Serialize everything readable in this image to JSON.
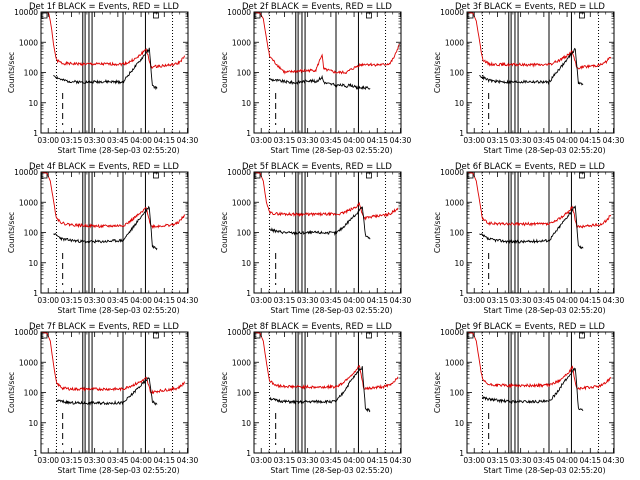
{
  "figure": {
    "ylabel": "Counts/sec",
    "xlabel": "Start Time (28-Sep-03 02:55:20)",
    "x_tick_labels": [
      "03:00",
      "03:15",
      "03:30",
      "03:45",
      "04:00",
      "04:15",
      "04:30"
    ],
    "y_tick_labels": [
      "1",
      "10",
      "100",
      "1000",
      "10000"
    ]
  },
  "colors": {
    "events": "#000000",
    "lld": "#dd0000",
    "axes": "#000000"
  },
  "chart_data": [
    {
      "type": "line",
      "title": "Det 1f BLACK = Events, RED = LLD",
      "xlabel": "Start Time (28-Sep-03 02:55:20)",
      "ylabel": "Counts/sec",
      "xlim_minutes": [
        0,
        95
      ],
      "ylim": [
        1,
        10000
      ],
      "yscale": "log",
      "vlines_dotted": [
        10,
        85
      ],
      "vlines_dashed": [
        14
      ],
      "vlines_solid": [
        27,
        28.5,
        31,
        33,
        53,
        67.5
      ],
      "series": [
        {
          "name": "LLD",
          "color": "#dd0000",
          "x": [
            0,
            4,
            5,
            6,
            7,
            8,
            10,
            14,
            20,
            27,
            40,
            53,
            57,
            60,
            62,
            68,
            71,
            75,
            80,
            85,
            88,
            90,
            93
          ],
          "values": [
            10000,
            10000,
            9000,
            5000,
            2500,
            900,
            250,
            200,
            195,
            190,
            190,
            190,
            220,
            270,
            300,
            600,
            150,
            160,
            170,
            180,
            195,
            230,
            350
          ]
        },
        {
          "name": "Events",
          "color": "#000000",
          "x": [
            8,
            10,
            14,
            20,
            27,
            40,
            53,
            57,
            60,
            62,
            66,
            68,
            70,
            72,
            75
          ],
          "values": [
            80,
            70,
            55,
            50,
            48,
            50,
            48,
            90,
            140,
            180,
            330,
            450,
            600,
            35,
            30
          ]
        }
      ]
    },
    {
      "type": "line",
      "title": "Det 2f BLACK = Events, RED = LLD",
      "xlabel": "Start Time (28-Sep-03 02:55:20)",
      "ylabel": "Counts/sec",
      "xlim_minutes": [
        0,
        95
      ],
      "ylim": [
        1,
        10000
      ],
      "yscale": "log",
      "vlines_dotted": [
        10,
        85
      ],
      "vlines_dashed": [
        14
      ],
      "vlines_solid": [
        27,
        28.5,
        31,
        33,
        53,
        67.5
      ],
      "series": [
        {
          "name": "LLD",
          "color": "#dd0000",
          "x": [
            0,
            4,
            6,
            8,
            10,
            14,
            20,
            27,
            35,
            40,
            44,
            45,
            46,
            53,
            57,
            60,
            62,
            68,
            72,
            78,
            84,
            88,
            91,
            94
          ],
          "values": [
            10000,
            9000,
            6000,
            1400,
            350,
            200,
            100,
            110,
            115,
            120,
            400,
            130,
            125,
            100,
            100,
            100,
            120,
            175,
            190,
            180,
            180,
            200,
            350,
            900
          ]
        },
        {
          "name": "Events",
          "color": "#000000",
          "x": [
            10,
            14,
            20,
            27,
            35,
            40,
            44,
            45,
            46,
            53,
            57,
            60,
            62,
            67,
            70,
            75
          ],
          "values": [
            60,
            55,
            50,
            45,
            55,
            50,
            70,
            50,
            45,
            38,
            38,
            35,
            40,
            30,
            32,
            30
          ]
        }
      ]
    },
    {
      "type": "line",
      "title": "Det 3f BLACK = Events, RED = LLD",
      "xlabel": "Start Time (28-Sep-03 02:55:20)",
      "ylabel": "Counts/sec",
      "xlim_minutes": [
        0,
        95
      ],
      "ylim": [
        1,
        10000
      ],
      "yscale": "log",
      "vlines_dotted": [
        10,
        85
      ],
      "vlines_dashed": [
        14
      ],
      "vlines_solid": [
        27,
        28.5,
        31,
        33,
        53,
        67.5
      ],
      "series": [
        {
          "name": "LLD",
          "color": "#dd0000",
          "x": [
            0,
            4,
            6,
            8,
            10,
            14,
            20,
            27,
            40,
            53,
            57,
            60,
            62,
            66,
            68,
            71,
            75,
            80,
            85,
            88,
            90,
            93
          ],
          "values": [
            10000,
            9000,
            5000,
            1200,
            280,
            190,
            185,
            180,
            180,
            180,
            220,
            260,
            300,
            400,
            500,
            140,
            150,
            165,
            175,
            195,
            230,
            320
          ]
        },
        {
          "name": "Events",
          "color": "#000000",
          "x": [
            8,
            10,
            14,
            20,
            27,
            40,
            53,
            57,
            60,
            62,
            66,
            68,
            70,
            72,
            75
          ],
          "values": [
            80,
            70,
            55,
            50,
            48,
            50,
            48,
            90,
            140,
            180,
            330,
            450,
            600,
            45,
            40
          ]
        }
      ]
    },
    {
      "type": "line",
      "title": "Det 4f BLACK = Events, RED = LLD",
      "xlabel": "Start Time (28-Sep-03 02:55:20)",
      "ylabel": "Counts/sec",
      "xlim_minutes": [
        0,
        95
      ],
      "ylim": [
        1,
        10000
      ],
      "yscale": "log",
      "vlines_dotted": [
        10,
        85
      ],
      "vlines_dashed": [
        14
      ],
      "vlines_solid": [
        27,
        28.5,
        31,
        33,
        53,
        67.5
      ],
      "series": [
        {
          "name": "LLD",
          "color": "#dd0000",
          "x": [
            0,
            4,
            6,
            8,
            10,
            14,
            20,
            27,
            40,
            53,
            57,
            60,
            62,
            66,
            68,
            71,
            75,
            80,
            85,
            88,
            90,
            93
          ],
          "values": [
            10000,
            9000,
            5000,
            1200,
            300,
            200,
            180,
            170,
            160,
            170,
            220,
            300,
            350,
            500,
            700,
            160,
            160,
            170,
            180,
            200,
            250,
            380
          ]
        },
        {
          "name": "Events",
          "color": "#000000",
          "x": [
            8,
            10,
            14,
            20,
            27,
            40,
            53,
            57,
            60,
            62,
            66,
            68,
            70,
            72,
            75
          ],
          "values": [
            90,
            80,
            60,
            55,
            50,
            50,
            55,
            100,
            160,
            220,
            400,
            550,
            700,
            35,
            30
          ]
        }
      ]
    },
    {
      "type": "line",
      "title": "Det 5f BLACK = Events, RED = LLD",
      "xlabel": "Start Time (28-Sep-03 02:55:20)",
      "ylabel": "Counts/sec",
      "xlim_minutes": [
        0,
        95
      ],
      "ylim": [
        1,
        10000
      ],
      "yscale": "log",
      "vlines_dotted": [
        10,
        85
      ],
      "vlines_dashed": [
        14
      ],
      "vlines_solid": [
        27,
        28.5,
        31,
        33,
        53,
        67.5
      ],
      "series": [
        {
          "name": "LLD",
          "color": "#dd0000",
          "x": [
            0,
            4,
            6,
            8,
            10,
            14,
            20,
            27,
            40,
            53,
            57,
            60,
            62,
            66,
            68,
            71,
            75,
            80,
            85,
            88,
            90,
            93
          ],
          "values": [
            10000,
            9000,
            5000,
            1000,
            450,
            420,
            410,
            400,
            400,
            400,
            430,
            500,
            550,
            700,
            900,
            300,
            320,
            350,
            380,
            420,
            480,
            650
          ]
        },
        {
          "name": "Events",
          "color": "#000000",
          "x": [
            10,
            14,
            20,
            27,
            40,
            53,
            57,
            60,
            62,
            66,
            68,
            70,
            72,
            75
          ],
          "values": [
            130,
            110,
            100,
            95,
            100,
            95,
            140,
            200,
            260,
            400,
            550,
            700,
            80,
            60
          ]
        }
      ]
    },
    {
      "type": "line",
      "title": "Det 6f BLACK = Events, RED = LLD",
      "xlabel": "Start Time (28-Sep-03 02:55:20)",
      "ylabel": "Counts/sec",
      "xlim_minutes": [
        0,
        95
      ],
      "ylim": [
        1,
        10000
      ],
      "yscale": "log",
      "vlines_dotted": [
        10,
        85
      ],
      "vlines_dashed": [
        14
      ],
      "vlines_solid": [
        27,
        28.5,
        31,
        33,
        53,
        67.5
      ],
      "series": [
        {
          "name": "LLD",
          "color": "#dd0000",
          "x": [
            0,
            4,
            6,
            8,
            10,
            14,
            20,
            27,
            40,
            53,
            57,
            60,
            62,
            66,
            68,
            71,
            75,
            80,
            85,
            88,
            90,
            93
          ],
          "values": [
            10000,
            9000,
            5000,
            1200,
            280,
            200,
            195,
            190,
            190,
            190,
            230,
            300,
            350,
            500,
            750,
            150,
            160,
            170,
            180,
            200,
            250,
            380
          ]
        },
        {
          "name": "Events",
          "color": "#000000",
          "x": [
            8,
            10,
            14,
            20,
            27,
            40,
            53,
            57,
            60,
            62,
            66,
            68,
            70,
            72,
            75
          ],
          "values": [
            90,
            80,
            60,
            55,
            50,
            50,
            55,
            100,
            160,
            220,
            400,
            550,
            700,
            35,
            30
          ]
        }
      ]
    },
    {
      "type": "line",
      "title": "Det 7f BLACK = Events, RED = LLD",
      "xlabel": "Start Time (28-Sep-03 02:55:20)",
      "ylabel": "Counts/sec",
      "xlim_minutes": [
        0,
        95
      ],
      "ylim": [
        1,
        10000
      ],
      "yscale": "log",
      "vlines_dotted": [
        10,
        85
      ],
      "vlines_dashed": [
        14
      ],
      "vlines_solid": [
        27,
        28.5,
        31,
        33,
        53,
        67.5
      ],
      "series": [
        {
          "name": "LLD",
          "color": "#dd0000",
          "x": [
            0,
            4,
            6,
            8,
            10,
            14,
            20,
            27,
            40,
            53,
            57,
            60,
            62,
            66,
            68,
            71,
            75,
            80,
            85,
            88,
            90,
            93
          ],
          "values": [
            10000,
            9000,
            5000,
            900,
            200,
            140,
            130,
            130,
            130,
            130,
            160,
            180,
            200,
            250,
            300,
            100,
            110,
            120,
            130,
            140,
            160,
            220
          ]
        },
        {
          "name": "Events",
          "color": "#000000",
          "x": [
            10,
            14,
            20,
            27,
            40,
            53,
            57,
            60,
            62,
            66,
            68,
            70,
            72,
            75
          ],
          "values": [
            55,
            50,
            45,
            45,
            45,
            45,
            70,
            100,
            130,
            200,
            260,
            300,
            50,
            40
          ]
        }
      ]
    },
    {
      "type": "line",
      "title": "Det 8f BLACK = Events, RED = LLD",
      "xlabel": "Start Time (28-Sep-03 02:55:20)",
      "ylabel": "Counts/sec",
      "xlim_minutes": [
        0,
        95
      ],
      "ylim": [
        1,
        10000
      ],
      "yscale": "log",
      "vlines_dotted": [
        10,
        85
      ],
      "vlines_dashed": [
        14
      ],
      "vlines_solid": [
        27,
        28.5,
        31,
        33,
        53,
        67.5
      ],
      "series": [
        {
          "name": "LLD",
          "color": "#dd0000",
          "x": [
            0,
            4,
            6,
            8,
            10,
            14,
            20,
            27,
            40,
            53,
            57,
            60,
            62,
            66,
            68,
            71,
            75,
            80,
            85,
            88,
            90,
            93
          ],
          "values": [
            10000,
            9000,
            5000,
            1000,
            250,
            170,
            160,
            155,
            150,
            155,
            200,
            280,
            350,
            500,
            800,
            130,
            140,
            150,
            160,
            180,
            220,
            330
          ]
        },
        {
          "name": "Events",
          "color": "#000000",
          "x": [
            10,
            14,
            20,
            27,
            40,
            53,
            57,
            60,
            62,
            66,
            68,
            70,
            72,
            75
          ],
          "values": [
            65,
            55,
            50,
            48,
            50,
            50,
            90,
            150,
            220,
            400,
            550,
            700,
            30,
            25
          ]
        }
      ]
    },
    {
      "type": "line",
      "title": "Det 9f BLACK = Events, RED = LLD",
      "xlabel": "Start Time (28-Sep-03 02:55:20)",
      "ylabel": "Counts/sec",
      "xlim_minutes": [
        0,
        95
      ],
      "ylim": [
        1,
        10000
      ],
      "yscale": "log",
      "vlines_dotted": [
        10,
        85
      ],
      "vlines_dashed": [
        14
      ],
      "vlines_solid": [
        27,
        28.5,
        31,
        33,
        53,
        67.5
      ],
      "series": [
        {
          "name": "LLD",
          "color": "#dd0000",
          "x": [
            0,
            4,
            6,
            8,
            10,
            14,
            20,
            27,
            40,
            53,
            57,
            60,
            62,
            66,
            68,
            71,
            75,
            80,
            85,
            88,
            90,
            93
          ],
          "values": [
            10000,
            9000,
            5000,
            1100,
            260,
            180,
            175,
            170,
            170,
            175,
            210,
            260,
            320,
            450,
            700,
            130,
            140,
            150,
            160,
            180,
            220,
            320
          ]
        },
        {
          "name": "Events",
          "color": "#000000",
          "x": [
            10,
            14,
            20,
            27,
            40,
            53,
            57,
            60,
            62,
            66,
            68,
            70,
            72,
            75
          ],
          "values": [
            70,
            60,
            55,
            50,
            50,
            50,
            85,
            140,
            200,
            350,
            500,
            650,
            30,
            25
          ]
        }
      ]
    }
  ]
}
